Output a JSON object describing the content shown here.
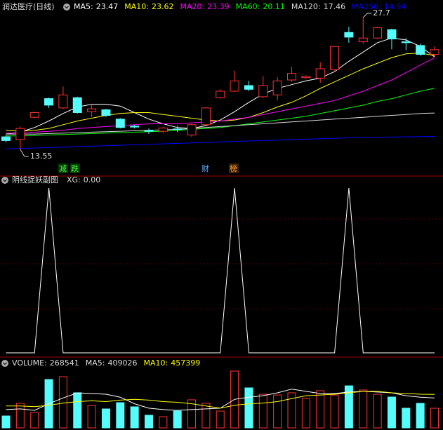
{
  "chart_data": [
    {
      "type": "candlestick",
      "title": "润达医疗(日线)",
      "open": [
        14.9,
        14.6,
        17.0,
        19.0,
        18.0,
        19.1,
        17.6,
        17.8,
        16.8,
        16.05,
        15.6,
        15.5,
        15.75,
        15.1,
        16.2,
        19.1,
        19.8,
        20.4,
        19.2,
        19.4,
        21.0,
        21.25,
        21.2,
        22.1,
        26.1,
        25.1,
        25.5,
        26.4,
        25.1,
        24.7,
        23.75
      ],
      "close": [
        14.5,
        15.8,
        17.5,
        18.3,
        19.4,
        17.5,
        17.9,
        17.2,
        15.9,
        15.95,
        15.5,
        15.85,
        15.7,
        16.2,
        18.0,
        19.8,
        20.9,
        20.0,
        20.4,
        20.9,
        21.7,
        21.4,
        22.2,
        24.6,
        25.6,
        25.5,
        26.6,
        25.4,
        25.0,
        23.75,
        24.25
      ],
      "high": [
        15.1,
        16.0,
        17.6,
        19.1,
        20.3,
        19.2,
        18.3,
        17.9,
        16.9,
        16.2,
        15.8,
        16.0,
        16.1,
        16.3,
        18.1,
        20.0,
        22.0,
        20.9,
        21.4,
        21.3,
        22.4,
        21.5,
        22.9,
        24.6,
        26.7,
        27.7,
        26.7,
        26.5,
        25.5,
        24.9,
        24.6
      ],
      "low": [
        14.3,
        13.55,
        16.9,
        18.0,
        17.9,
        17.4,
        17.0,
        17.0,
        15.8,
        15.8,
        15.2,
        15.3,
        15.4,
        14.9,
        16.1,
        19.0,
        19.7,
        19.8,
        19.1,
        18.8,
        20.8,
        21.1,
        20.7,
        22.0,
        25.0,
        24.9,
        25.4,
        24.3,
        24.2,
        23.6,
        23.5
      ],
      "series": [
        {
          "name": "MA5:",
          "color": "#ffffff",
          "values": [
            15.2,
            15.4,
            15.9,
            16.6,
            17.4,
            18.1,
            18.4,
            18.4,
            18.2,
            17.5,
            16.8,
            16.3,
            15.9,
            15.8,
            16.1,
            16.7,
            17.6,
            18.6,
            19.5,
            20.1,
            20.5,
            20.9,
            21.2,
            21.9,
            23.0,
            24.0,
            25.0,
            25.5,
            25.3,
            24.6,
            23.47
          ]
        },
        {
          "name": "MA10:",
          "color": "#ffff00",
          "values": [
            15.6,
            15.5,
            15.6,
            15.8,
            16.2,
            16.6,
            16.9,
            17.2,
            17.4,
            17.5,
            17.5,
            17.3,
            17.1,
            16.9,
            16.7,
            16.6,
            16.7,
            17.0,
            17.5,
            18.1,
            18.6,
            19.3,
            20.1,
            20.8,
            21.5,
            22.2,
            22.8,
            23.4,
            23.8,
            23.9,
            23.62
          ]
        },
        {
          "name": "MA20:",
          "color": "#ff00ff",
          "values": [
            15.3,
            15.3,
            15.4,
            15.5,
            15.6,
            15.8,
            15.9,
            16.0,
            16.1,
            16.2,
            16.3,
            16.3,
            16.3,
            16.4,
            16.5,
            16.6,
            16.8,
            17.0,
            17.3,
            17.6,
            17.9,
            18.2,
            18.5,
            18.8,
            19.3,
            19.8,
            20.4,
            21.0,
            21.8,
            22.6,
            23.39
          ]
        },
        {
          "name": "MA60:",
          "color": "#00ff00",
          "values": [
            15.0,
            15.0,
            15.05,
            15.1,
            15.15,
            15.2,
            15.25,
            15.3,
            15.35,
            15.4,
            15.45,
            15.5,
            15.6,
            15.7,
            15.8,
            15.9,
            16.1,
            16.3,
            16.5,
            16.7,
            16.9,
            17.1,
            17.4,
            17.7,
            18.0,
            18.3,
            18.7,
            19.0,
            19.4,
            19.8,
            20.11
          ]
        },
        {
          "name": "MA120:",
          "color": "#d8d8d8",
          "values": [
            15.2,
            15.2,
            15.2,
            15.25,
            15.3,
            15.35,
            15.4,
            15.45,
            15.5,
            15.55,
            15.6,
            15.65,
            15.7,
            15.8,
            15.9,
            16.0,
            16.1,
            16.2,
            16.3,
            16.4,
            16.5,
            16.6,
            16.7,
            16.8,
            16.9,
            17.0,
            17.1,
            17.2,
            17.3,
            17.4,
            17.46
          ]
        },
        {
          "name": "MA250:",
          "color": "#0000ff",
          "values": [
            13.6,
            13.65,
            13.7,
            13.75,
            13.8,
            13.85,
            13.9,
            13.95,
            14.0,
            14.05,
            14.1,
            14.15,
            14.2,
            14.25,
            14.3,
            14.35,
            14.4,
            14.45,
            14.5,
            14.55,
            14.6,
            14.65,
            14.7,
            14.75,
            14.8,
            14.82,
            14.85,
            14.88,
            14.9,
            14.92,
            14.94
          ]
        }
      ],
      "events": [
        "减",
        "跌",
        "财",
        "榜"
      ]
    },
    {
      "type": "line",
      "title": "阴线捉妖副图",
      "series": [
        {
          "name": "XG:",
          "color": "#ffffff",
          "value_label": "0.00",
          "values": [
            0,
            0,
            0,
            1,
            0,
            0,
            0,
            0,
            0,
            0,
            0,
            0,
            0,
            0,
            0,
            0,
            1,
            0,
            0,
            0,
            0,
            0,
            0,
            0,
            1,
            0,
            0,
            0,
            0,
            0,
            0
          ]
        }
      ]
    },
    {
      "type": "volume",
      "values": [
        163000,
        336000,
        211000,
        662000,
        700000,
        480000,
        307000,
        259000,
        345000,
        288000,
        173000,
        153000,
        230000,
        384000,
        336000,
        230000,
        777000,
        547000,
        460000,
        450000,
        480000,
        403000,
        508000,
        450000,
        575000,
        518000,
        460000,
        422000,
        269000,
        336000,
        268541
      ],
      "name": "VOLUME:",
      "series": [
        {
          "name": "MA5:",
          "color": "#ffffff",
          "values": [
            250000,
            260000,
            240000,
            330000,
            410000,
            480000,
            470000,
            460000,
            420000,
            330000,
            270000,
            250000,
            240000,
            250000,
            260000,
            270000,
            390000,
            420000,
            440000,
            480000,
            530000,
            500000,
            470000,
            470000,
            490000,
            500000,
            490000,
            480000,
            440000,
            420000,
            409026
          ]
        },
        {
          "name": "MA10:",
          "color": "#ffff00",
          "values": [
            300000,
            300000,
            290000,
            310000,
            340000,
            360000,
            370000,
            360000,
            380000,
            390000,
            380000,
            360000,
            350000,
            330000,
            300000,
            270000,
            310000,
            330000,
            340000,
            360000,
            400000,
            440000,
            450000,
            460000,
            480000,
            500000,
            500000,
            480000,
            470000,
            460000,
            457399
          ]
        }
      ]
    }
  ]
}
